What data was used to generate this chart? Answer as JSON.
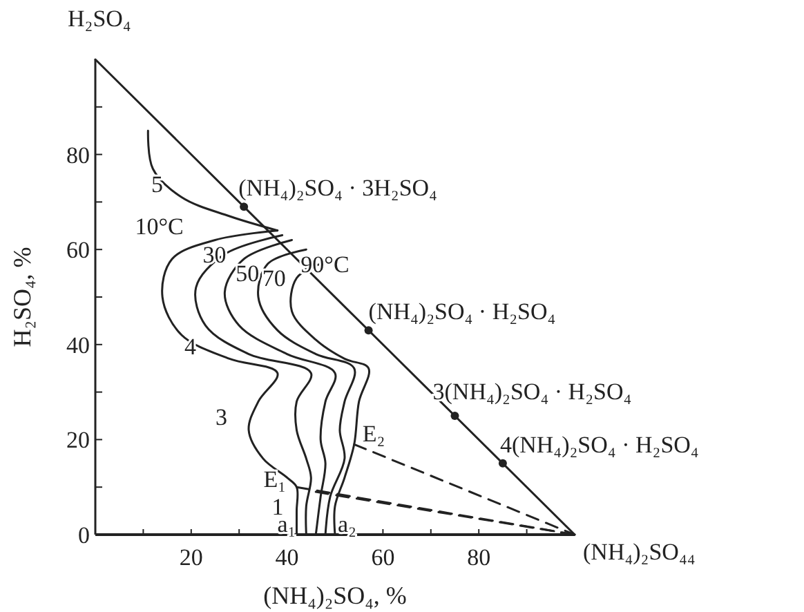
{
  "chart_data": {
    "type": "line",
    "xlabel": "(NH₄)₂SO₄, %",
    "ylabel": "H₂SO₄, %",
    "xlim": [
      0,
      100
    ],
    "ylim": [
      0,
      100
    ],
    "xticks": [
      {
        "value": 10,
        "label": null
      },
      20,
      {
        "value": 30,
        "label": null
      },
      40,
      {
        "value": 50,
        "label": null
      },
      60,
      {
        "value": 70,
        "label": null
      },
      80,
      {
        "value": 90,
        "label": null
      }
    ],
    "yticks": [
      0,
      {
        "value": 10,
        "label": null
      },
      20,
      {
        "value": 30,
        "label": null
      },
      40,
      {
        "value": 50,
        "label": null
      },
      60,
      {
        "value": 70,
        "label": null
      },
      80,
      {
        "value": 90,
        "label": null
      }
    ],
    "grid": false,
    "series": [
      {
        "color": "#222222",
        "line_style": "solid",
        "x": [
          0,
          100
        ],
        "values": [
          100,
          0
        ]
      },
      {
        "color": "#222222",
        "line_style": "solid",
        "x": [
          11,
          12,
          18,
          28,
          38
        ],
        "values": [
          85,
          77,
          71,
          67,
          64
        ]
      },
      {
        "color": "#222222",
        "line_style": "solid",
        "x": [
          38,
          25,
          16,
          14,
          18,
          28,
          38,
          34,
          32,
          35,
          40,
          42,
          42,
          42
        ],
        "values": [
          64,
          62,
          58,
          50,
          42,
          37,
          34,
          28,
          22,
          16,
          12,
          10,
          5,
          0
        ]
      },
      {
        "color": "#222222",
        "line_style": "solid",
        "x": [
          39,
          27,
          21,
          23,
          32,
          45,
          42,
          42,
          44,
          45,
          44,
          44
        ],
        "values": [
          63,
          59,
          52,
          44,
          38,
          34,
          28,
          22,
          16,
          12,
          6,
          0
        ]
      },
      {
        "color": "#222222",
        "line_style": "solid",
        "x": [
          41,
          31,
          27,
          30,
          40,
          50,
          48,
          47,
          48,
          47,
          46
        ],
        "values": [
          62,
          58,
          51,
          44,
          38,
          34,
          28,
          20,
          15,
          8,
          0
        ]
      },
      {
        "color": "#222222",
        "line_style": "solid",
        "x": [
          44,
          36,
          34,
          38,
          46,
          54,
          52,
          51,
          52,
          49,
          48
        ],
        "values": [
          60,
          57,
          50,
          43,
          38,
          35,
          28,
          22,
          16,
          8,
          0
        ]
      },
      {
        "color": "#222222",
        "line_style": "solid",
        "x": [
          47,
          42,
          41,
          46,
          52,
          57,
          55,
          54,
          52,
          50,
          50
        ],
        "values": [
          57,
          54,
          47,
          41,
          37,
          35,
          28,
          19,
          12,
          6,
          0
        ]
      },
      {
        "color": "#222222",
        "line_style": "dashed",
        "x": [
          54,
          100
        ],
        "values": [
          19,
          0
        ]
      },
      {
        "color": "#222222",
        "line_style": "dashed",
        "x": [
          42,
          100
        ],
        "values": [
          10,
          0
        ]
      },
      {
        "color": "#222222",
        "line_style": "dashed",
        "x": [
          46,
          100
        ],
        "values": [
          9,
          0
        ]
      },
      {
        "type": "scatter",
        "marker": "circle",
        "color": "#222222",
        "x": [
          31,
          57,
          75,
          85
        ],
        "values": [
          69,
          43,
          25,
          15
        ]
      }
    ],
    "annotations": [
      {
        "text": "H₂SO₄",
        "x": 0,
        "y": 100
      },
      {
        "text": "(NH₄)₂SO₄₄",
        "x": 100,
        "y": 0
      },
      {
        "text": "(NH₄)₂SO₄ · 3H₂SO₄",
        "x": 31,
        "y": 69
      },
      {
        "text": "(NH₄)₂SO₄ · H₂SO₄",
        "x": 57,
        "y": 43
      },
      {
        "text": "3(NH₄)₂SO₄ · H₂SO₄",
        "x": 75,
        "y": 25
      },
      {
        "text": "4(NH₄)₂SO₄ · H₂SO₄",
        "x": 85,
        "y": 15
      },
      {
        "text": "5",
        "x": 18,
        "y": 71
      },
      {
        "text": "10°C",
        "x": 25,
        "y": 62
      },
      {
        "text": "30",
        "x": 27,
        "y": 59
      },
      {
        "text": "50",
        "x": 31,
        "y": 58
      },
      {
        "text": "70",
        "x": 36,
        "y": 57
      },
      {
        "text": "90°C",
        "x": 44,
        "y": 57
      },
      {
        "text": "4",
        "x": 18,
        "y": 42
      },
      {
        "text": "3",
        "x": 32,
        "y": 22
      },
      {
        "text": "E₂",
        "x": 54,
        "y": 19
      },
      {
        "text": "E₁",
        "x": 42,
        "y": 10
      },
      {
        "text": "1",
        "x": 42,
        "y": 3
      },
      {
        "text": "a₁",
        "x": 42,
        "y": 0
      },
      {
        "text": "a₂",
        "x": 50,
        "y": 0
      }
    ]
  }
}
